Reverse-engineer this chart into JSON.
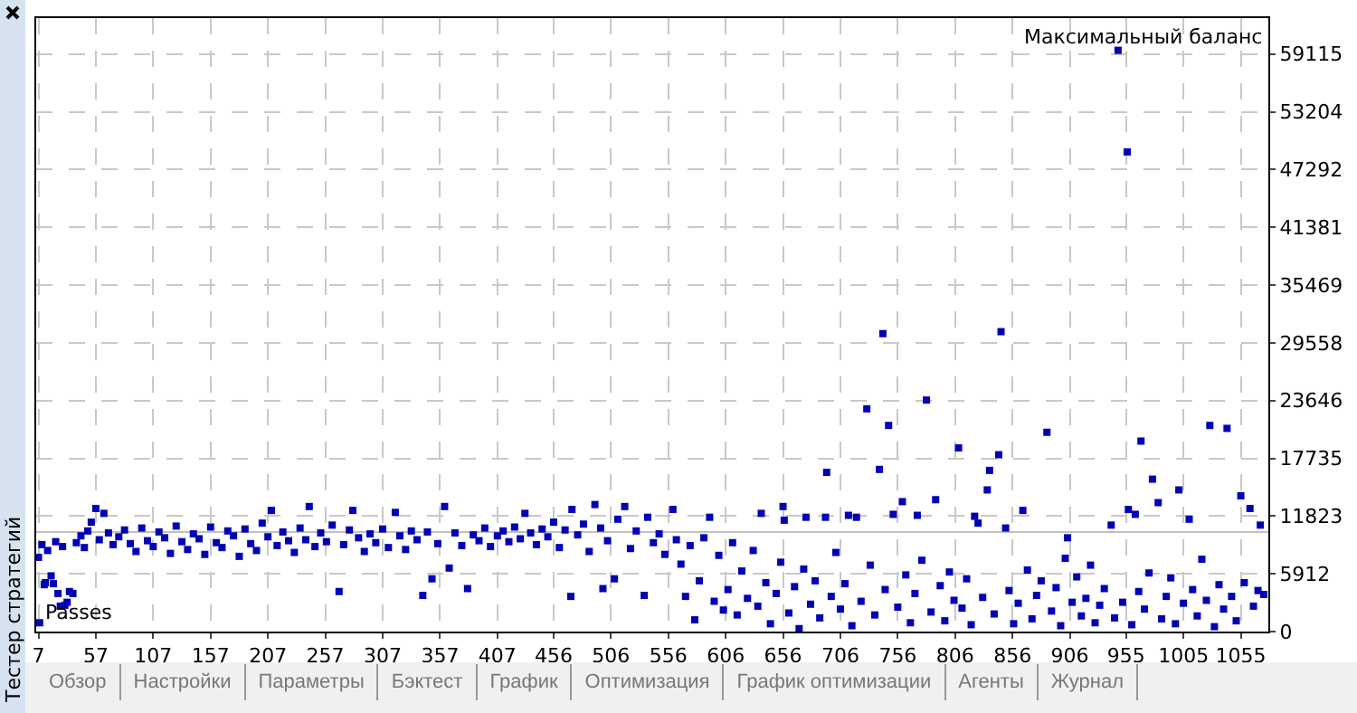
{
  "chart_data": {
    "type": "scatter",
    "xlabel": "Passes",
    "ylabel": "Максимальный баланс",
    "annotations": [
      "Тестер стратегий",
      "Обзор",
      "Настройки",
      "Параметры",
      "Бэктест",
      "График",
      "Оптимизация",
      "График оптимизации",
      "Агенты",
      "Журнал"
    ],
    "color": "#0000b4",
    "marker": "square",
    "grid": true,
    "xlim": [
      5,
      1079
    ],
    "ylim": [
      0,
      62800
    ],
    "xticks": [
      7,
      57,
      107,
      157,
      207,
      257,
      307,
      357,
      407,
      456,
      506,
      556,
      606,
      656,
      706,
      756,
      806,
      856,
      906,
      955,
      1005,
      1055
    ],
    "yticks": [
      0,
      5912,
      11823,
      17735,
      23646,
      29558,
      35469,
      41381,
      47292,
      53204,
      59115
    ],
    "ref_lines": [
      {
        "axis": "y",
        "value": 10200,
        "color": "#c0c0c0",
        "line_style": "solid"
      }
    ],
    "x": [
      7,
      8,
      10,
      12,
      13,
      15,
      18,
      20,
      22,
      24,
      26,
      28,
      30,
      32,
      34,
      37,
      40,
      44,
      47,
      50,
      53,
      57,
      60,
      64,
      68,
      72,
      77,
      82,
      87,
      92,
      97,
      102,
      107,
      112,
      117,
      122,
      127,
      132,
      137,
      142,
      147,
      152,
      157,
      162,
      167,
      172,
      177,
      182,
      187,
      192,
      197,
      202,
      207,
      210,
      215,
      220,
      225,
      230,
      235,
      240,
      243,
      248,
      253,
      258,
      263,
      269,
      273,
      278,
      281,
      286,
      291,
      296,
      301,
      307,
      312,
      318,
      322,
      327,
      332,
      337,
      342,
      346,
      350,
      355,
      361,
      365,
      370,
      376,
      381,
      386,
      391,
      396,
      401,
      407,
      412,
      417,
      422,
      427,
      431,
      436,
      441,
      446,
      451,
      456,
      461,
      466,
      471,
      472,
      477,
      482,
      487,
      492,
      497,
      499,
      503,
      509,
      512,
      518,
      523,
      528,
      535,
      538,
      543,
      548,
      553,
      560,
      563,
      567,
      571,
      575,
      579,
      583,
      587,
      592,
      596,
      600,
      604,
      608,
      612,
      616,
      620,
      625,
      630,
      634,
      637,
      641,
      645,
      650,
      654,
      656,
      657,
      661,
      666,
      670,
      674,
      676,
      680,
      684,
      688,
      693,
      694,
      698,
      702,
      706,
      710,
      713,
      716,
      720,
      724,
      729,
      732,
      736,
      740,
      743,
      745,
      748,
      752,
      756,
      760,
      763,
      767,
      771,
      773,
      777,
      781,
      785,
      789,
      793,
      797,
      801,
      805,
      809,
      812,
      816,
      820,
      823,
      826,
      830,
      834,
      836,
      840,
      844,
      846,
      850,
      853,
      857,
      861,
      865,
      869,
      873,
      877,
      881,
      886,
      890,
      894,
      898,
      902,
      904,
      908,
      912,
      916,
      920,
      924,
      928,
      932,
      936,
      942,
      945,
      948,
      952,
      956,
      957,
      960,
      963,
      966,
      968,
      971,
      975,
      978,
      983,
      986,
      990,
      994,
      998,
      1001,
      1005,
      1010,
      1013,
      1017,
      1021,
      1025,
      1028,
      1032,
      1036,
      1040,
      1043,
      1047,
      1051,
      1055,
      1058,
      1063,
      1066,
      1070,
      1072,
      1075
    ],
    "values": [
      7600,
      900,
      8900,
      4800,
      5000,
      8300,
      5700,
      4900,
      9200,
      3900,
      2600,
      8700,
      2700,
      3000,
      4100,
      3900,
      9100,
      9800,
      8600,
      10300,
      11200,
      12600,
      9400,
      12100,
      10100,
      8900,
      9700,
      10400,
      9000,
      8200,
      10600,
      9300,
      8700,
      10200,
      9600,
      8000,
      10800,
      9200,
      8400,
      10000,
      9500,
      7900,
      10700,
      9100,
      8600,
      10300,
      9800,
      7700,
      10500,
      9000,
      8300,
      11100,
      9700,
      12400,
      8800,
      10200,
      9300,
      8100,
      10600,
      9400,
      12800,
      8700,
      10100,
      9200,
      10900,
      4100,
      8900,
      10400,
      12400,
      9600,
      8200,
      10000,
      9100,
      10500,
      8600,
      12200,
      9800,
      8400,
      10300,
      9400,
      3700,
      10200,
      5400,
      9000,
      12800,
      6500,
      10100,
      8800,
      4400,
      9900,
      9300,
      10600,
      8700,
      9800,
      10300,
      9200,
      10700,
      9500,
      12100,
      10100,
      8900,
      10500,
      9700,
      11200,
      8600,
      10400,
      3600,
      12500,
      9900,
      11000,
      8200,
      13000,
      10600,
      4400,
      9300,
      5400,
      11500,
      12800,
      8500,
      10300,
      3700,
      11700,
      9100,
      10000,
      7900,
      12500,
      9400,
      6900,
      3600,
      8800,
      1200,
      5200,
      9600,
      11700,
      3100,
      7800,
      2200,
      4300,
      9100,
      1700,
      6200,
      3400,
      8300,
      2600,
      12100,
      5000,
      800,
      3900,
      7100,
      12800,
      11400,
      1900,
      4600,
      300,
      6400,
      11700,
      2800,
      5200,
      1400,
      11700,
      16300,
      3600,
      8100,
      2300,
      4900,
      11900,
      600,
      11700,
      3100,
      22800,
      6800,
      1700,
      16600,
      30500,
      4300,
      21100,
      12000,
      2500,
      13300,
      5800,
      900,
      3900,
      11900,
      7300,
      23700,
      2000,
      13500,
      4700,
      1100,
      6100,
      3200,
      18800,
      2400,
      5400,
      700,
      11800,
      11100,
      3500,
      14500,
      16500,
      1800,
      18100,
      30700,
      10600,
      4200,
      800,
      2900,
      12400,
      6300,
      1300,
      3700,
      5200,
      20400,
      2100,
      4500,
      600,
      7500,
      9600,
      3000,
      5600,
      1600,
      3400,
      6800,
      900,
      2700,
      4400,
      10900,
      1400,
      59500,
      3000,
      49100,
      12500,
      700,
      12000,
      4100,
      19500,
      2300,
      6000,
      15600,
      13200,
      1300,
      3600,
      5500,
      800,
      14500,
      2900,
      11500,
      4300,
      1600,
      7400,
      3200,
      21100,
      500,
      4800,
      2300,
      20800,
      3600,
      1100,
      13900,
      5000,
      12600,
      2600,
      4200,
      10900,
      3800
    ]
  }
}
